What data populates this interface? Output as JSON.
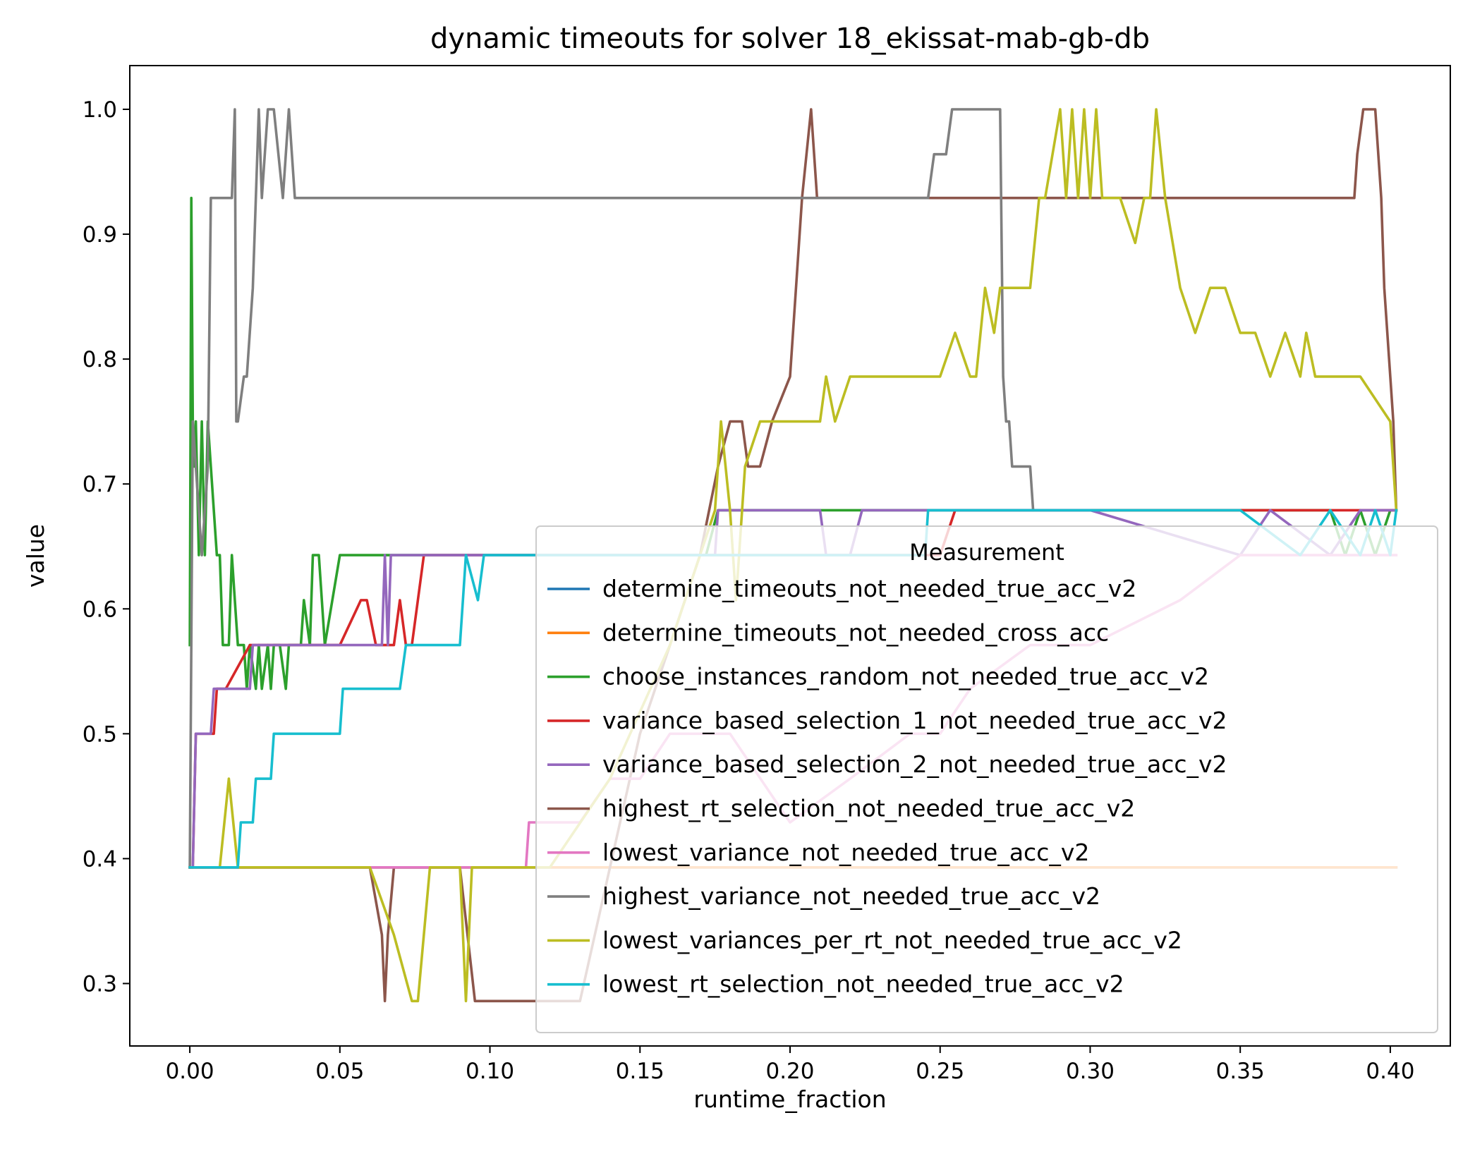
{
  "chart_data": {
    "type": "line",
    "title": "dynamic timeouts for solver 18_ekissat-mab-gb-db",
    "xlabel": "runtime_fraction",
    "ylabel": "value",
    "xlim": [
      -0.02,
      0.42
    ],
    "ylim": [
      0.25,
      1.035
    ],
    "xticks": [
      0.0,
      0.05,
      0.1,
      0.15,
      0.2,
      0.25,
      0.3,
      0.35,
      0.4
    ],
    "xtick_labels": [
      "0.00",
      "0.05",
      "0.10",
      "0.15",
      "0.20",
      "0.25",
      "0.30",
      "0.35",
      "0.40"
    ],
    "yticks": [
      0.3,
      0.4,
      0.5,
      0.6,
      0.7,
      0.8,
      0.9,
      1.0
    ],
    "ytick_labels": [
      "0.3",
      "0.4",
      "0.5",
      "0.6",
      "0.7",
      "0.8",
      "0.9",
      "1.0"
    ],
    "grid": false,
    "legend": {
      "title": "Measurement",
      "placement": "lower-right"
    },
    "series": [
      {
        "name": "determine_timeouts_not_needed_true_acc_v2",
        "color": "#1f77b4",
        "x": [
          0.0,
          0.003,
          0.005,
          0.007,
          0.015,
          0.05,
          0.1,
          0.2,
          0.3,
          0.402
        ],
        "y": [
          0.393,
          0.393,
          0.393,
          0.393,
          0.393,
          0.393,
          0.393,
          0.393,
          0.393,
          0.393
        ]
      },
      {
        "name": "determine_timeouts_not_needed_cross_acc",
        "color": "#ff7f0e",
        "x": [
          0.0,
          0.1,
          0.2,
          0.3,
          0.402
        ],
        "y": [
          0.393,
          0.393,
          0.393,
          0.393,
          0.393
        ]
      },
      {
        "name": "choose_instances_random_not_needed_true_acc_v2",
        "color": "#2ca02c",
        "x": [
          0.0,
          0.0005,
          0.001,
          0.0015,
          0.002,
          0.003,
          0.004,
          0.005,
          0.006,
          0.007,
          0.008,
          0.009,
          0.01,
          0.011,
          0.013,
          0.014,
          0.015,
          0.016,
          0.018,
          0.019,
          0.02,
          0.022,
          0.023,
          0.024,
          0.026,
          0.027,
          0.028,
          0.03,
          0.032,
          0.033,
          0.035,
          0.037,
          0.038,
          0.04,
          0.041,
          0.043,
          0.045,
          0.05,
          0.06,
          0.08,
          0.1,
          0.12,
          0.15,
          0.172,
          0.176,
          0.18,
          0.3,
          0.33,
          0.35,
          0.36,
          0.38,
          0.385,
          0.39,
          0.395,
          0.4,
          0.402
        ],
        "y": [
          0.571,
          0.929,
          0.75,
          0.714,
          0.75,
          0.643,
          0.75,
          0.643,
          0.75,
          0.714,
          0.679,
          0.643,
          0.643,
          0.571,
          0.571,
          0.643,
          0.607,
          0.571,
          0.571,
          0.536,
          0.571,
          0.536,
          0.571,
          0.536,
          0.571,
          0.536,
          0.571,
          0.571,
          0.536,
          0.571,
          0.571,
          0.571,
          0.607,
          0.571,
          0.643,
          0.643,
          0.571,
          0.643,
          0.643,
          0.643,
          0.643,
          0.643,
          0.643,
          0.643,
          0.679,
          0.679,
          0.679,
          0.679,
          0.679,
          0.679,
          0.679,
          0.643,
          0.679,
          0.643,
          0.679,
          0.679
        ]
      },
      {
        "name": "variance_based_selection_1_not_needed_true_acc_v2",
        "color": "#d62728",
        "x": [
          0.0,
          0.001,
          0.002,
          0.008,
          0.009,
          0.01,
          0.012,
          0.02,
          0.05,
          0.057,
          0.059,
          0.062,
          0.064,
          0.066,
          0.068,
          0.07,
          0.072,
          0.074,
          0.076,
          0.078,
          0.1,
          0.15,
          0.25,
          0.255,
          0.3,
          0.4,
          0.402
        ],
        "y": [
          0.393,
          0.393,
          0.5,
          0.5,
          0.536,
          0.536,
          0.536,
          0.571,
          0.571,
          0.607,
          0.607,
          0.571,
          0.571,
          0.571,
          0.571,
          0.607,
          0.571,
          0.571,
          0.607,
          0.643,
          0.643,
          0.643,
          0.643,
          0.679,
          0.679,
          0.679,
          0.679
        ]
      },
      {
        "name": "variance_based_selection_2_not_needed_true_acc_v2",
        "color": "#9467bd",
        "x": [
          0.0,
          0.001,
          0.002,
          0.007,
          0.008,
          0.02,
          0.021,
          0.064,
          0.065,
          0.066,
          0.067,
          0.1,
          0.15,
          0.175,
          0.176,
          0.2,
          0.21,
          0.212,
          0.22,
          0.224,
          0.25,
          0.3,
          0.35,
          0.36,
          0.38,
          0.39,
          0.4,
          0.402
        ],
        "y": [
          0.393,
          0.393,
          0.5,
          0.5,
          0.536,
          0.536,
          0.571,
          0.571,
          0.643,
          0.571,
          0.643,
          0.643,
          0.643,
          0.643,
          0.679,
          0.679,
          0.679,
          0.643,
          0.643,
          0.679,
          0.679,
          0.679,
          0.643,
          0.679,
          0.643,
          0.679,
          0.679,
          0.679
        ]
      },
      {
        "name": "highest_rt_selection_not_needed_true_acc_v2",
        "color": "#8c564b",
        "x": [
          0.0,
          0.015,
          0.06,
          0.064,
          0.065,
          0.066,
          0.068,
          0.085,
          0.09,
          0.095,
          0.1,
          0.122,
          0.13,
          0.14,
          0.15,
          0.16,
          0.17,
          0.176,
          0.18,
          0.182,
          0.184,
          0.186,
          0.19,
          0.194,
          0.2,
          0.204,
          0.207,
          0.209,
          0.211,
          0.22,
          0.25,
          0.3,
          0.35,
          0.388,
          0.389,
          0.391,
          0.393,
          0.395,
          0.397,
          0.398,
          0.399,
          0.4,
          0.401,
          0.402
        ],
        "y": [
          0.393,
          0.393,
          0.393,
          0.339,
          0.286,
          0.339,
          0.393,
          0.393,
          0.393,
          0.286,
          0.286,
          0.286,
          0.286,
          0.393,
          0.5,
          0.571,
          0.643,
          0.714,
          0.75,
          0.75,
          0.75,
          0.714,
          0.714,
          0.75,
          0.786,
          0.929,
          1.0,
          0.929,
          0.929,
          0.929,
          0.929,
          0.929,
          0.929,
          0.929,
          0.964,
          1.0,
          1.0,
          1.0,
          0.929,
          0.857,
          0.821,
          0.786,
          0.75,
          0.679
        ]
      },
      {
        "name": "lowest_variance_not_needed_true_acc_v2",
        "color": "#e377c2",
        "x": [
          0.0,
          0.1,
          0.112,
          0.113,
          0.12,
          0.13,
          0.14,
          0.15,
          0.16,
          0.18,
          0.2,
          0.22,
          0.24,
          0.25,
          0.26,
          0.28,
          0.3,
          0.33,
          0.35,
          0.37,
          0.38,
          0.4,
          0.402
        ],
        "y": [
          0.393,
          0.393,
          0.393,
          0.429,
          0.429,
          0.429,
          0.464,
          0.464,
          0.5,
          0.5,
          0.429,
          0.464,
          0.5,
          0.5,
          0.536,
          0.571,
          0.571,
          0.607,
          0.643,
          0.643,
          0.643,
          0.643,
          0.643
        ]
      },
      {
        "name": "highest_variance_not_needed_true_acc_v2",
        "color": "#7f7f7f",
        "x": [
          0.0,
          0.001,
          0.002,
          0.004,
          0.006,
          0.007,
          0.008,
          0.014,
          0.015,
          0.0155,
          0.016,
          0.018,
          0.019,
          0.021,
          0.022,
          0.023,
          0.024,
          0.026,
          0.028,
          0.031,
          0.033,
          0.035,
          0.036,
          0.038,
          0.05,
          0.1,
          0.15,
          0.2,
          0.246,
          0.248,
          0.252,
          0.254,
          0.26,
          0.27,
          0.271,
          0.272,
          0.273,
          0.274,
          0.28,
          0.281
        ],
        "y": [
          0.393,
          0.75,
          0.714,
          0.643,
          0.714,
          0.929,
          0.929,
          0.929,
          1.0,
          0.75,
          0.75,
          0.786,
          0.786,
          0.857,
          0.929,
          1.0,
          0.929,
          1.0,
          1.0,
          0.929,
          1.0,
          0.929,
          0.929,
          0.929,
          0.929,
          0.929,
          0.929,
          0.929,
          0.929,
          0.964,
          0.964,
          1.0,
          1.0,
          1.0,
          0.786,
          0.75,
          0.75,
          0.714,
          0.714,
          0.679
        ]
      },
      {
        "name": "lowest_variances_per_rt_not_needed_true_acc_v2",
        "color": "#bcbd22",
        "x": [
          0.0,
          0.01,
          0.013,
          0.016,
          0.02,
          0.06,
          0.068,
          0.074,
          0.076,
          0.08,
          0.09,
          0.092,
          0.094,
          0.1,
          0.12,
          0.14,
          0.16,
          0.17,
          0.175,
          0.177,
          0.18,
          0.182,
          0.185,
          0.19,
          0.2,
          0.21,
          0.212,
          0.215,
          0.22,
          0.23,
          0.242,
          0.25,
          0.255,
          0.26,
          0.262,
          0.265,
          0.268,
          0.27,
          0.28,
          0.283,
          0.285,
          0.29,
          0.292,
          0.294,
          0.296,
          0.298,
          0.3,
          0.302,
          0.304,
          0.306,
          0.308,
          0.31,
          0.315,
          0.318,
          0.32,
          0.322,
          0.325,
          0.33,
          0.335,
          0.34,
          0.345,
          0.35,
          0.355,
          0.36,
          0.365,
          0.37,
          0.372,
          0.375,
          0.38,
          0.39,
          0.4,
          0.402
        ],
        "y": [
          0.393,
          0.393,
          0.464,
          0.393,
          0.393,
          0.393,
          0.339,
          0.286,
          0.286,
          0.393,
          0.393,
          0.286,
          0.393,
          0.393,
          0.393,
          0.464,
          0.571,
          0.643,
          0.679,
          0.75,
          0.679,
          0.607,
          0.714,
          0.75,
          0.75,
          0.75,
          0.786,
          0.75,
          0.786,
          0.786,
          0.786,
          0.786,
          0.821,
          0.786,
          0.786,
          0.857,
          0.821,
          0.857,
          0.857,
          0.929,
          0.929,
          1.0,
          0.929,
          1.0,
          0.929,
          1.0,
          0.929,
          1.0,
          0.929,
          0.929,
          0.929,
          0.929,
          0.893,
          0.929,
          0.929,
          1.0,
          0.929,
          0.857,
          0.821,
          0.857,
          0.857,
          0.821,
          0.821,
          0.786,
          0.821,
          0.786,
          0.821,
          0.786,
          0.786,
          0.786,
          0.75,
          0.679
        ]
      },
      {
        "name": "lowest_rt_selection_not_needed_true_acc_v2",
        "color": "#17becf",
        "x": [
          0.0,
          0.016,
          0.017,
          0.021,
          0.022,
          0.027,
          0.028,
          0.05,
          0.051,
          0.07,
          0.072,
          0.09,
          0.092,
          0.096,
          0.098,
          0.1,
          0.101,
          0.15,
          0.2,
          0.245,
          0.246,
          0.3,
          0.35,
          0.37,
          0.38,
          0.39,
          0.395,
          0.4,
          0.402
        ],
        "y": [
          0.393,
          0.393,
          0.429,
          0.429,
          0.464,
          0.464,
          0.5,
          0.5,
          0.536,
          0.536,
          0.571,
          0.571,
          0.643,
          0.607,
          0.643,
          0.643,
          0.643,
          0.643,
          0.643,
          0.643,
          0.679,
          0.679,
          0.679,
          0.643,
          0.679,
          0.643,
          0.679,
          0.643,
          0.679
        ]
      }
    ]
  }
}
